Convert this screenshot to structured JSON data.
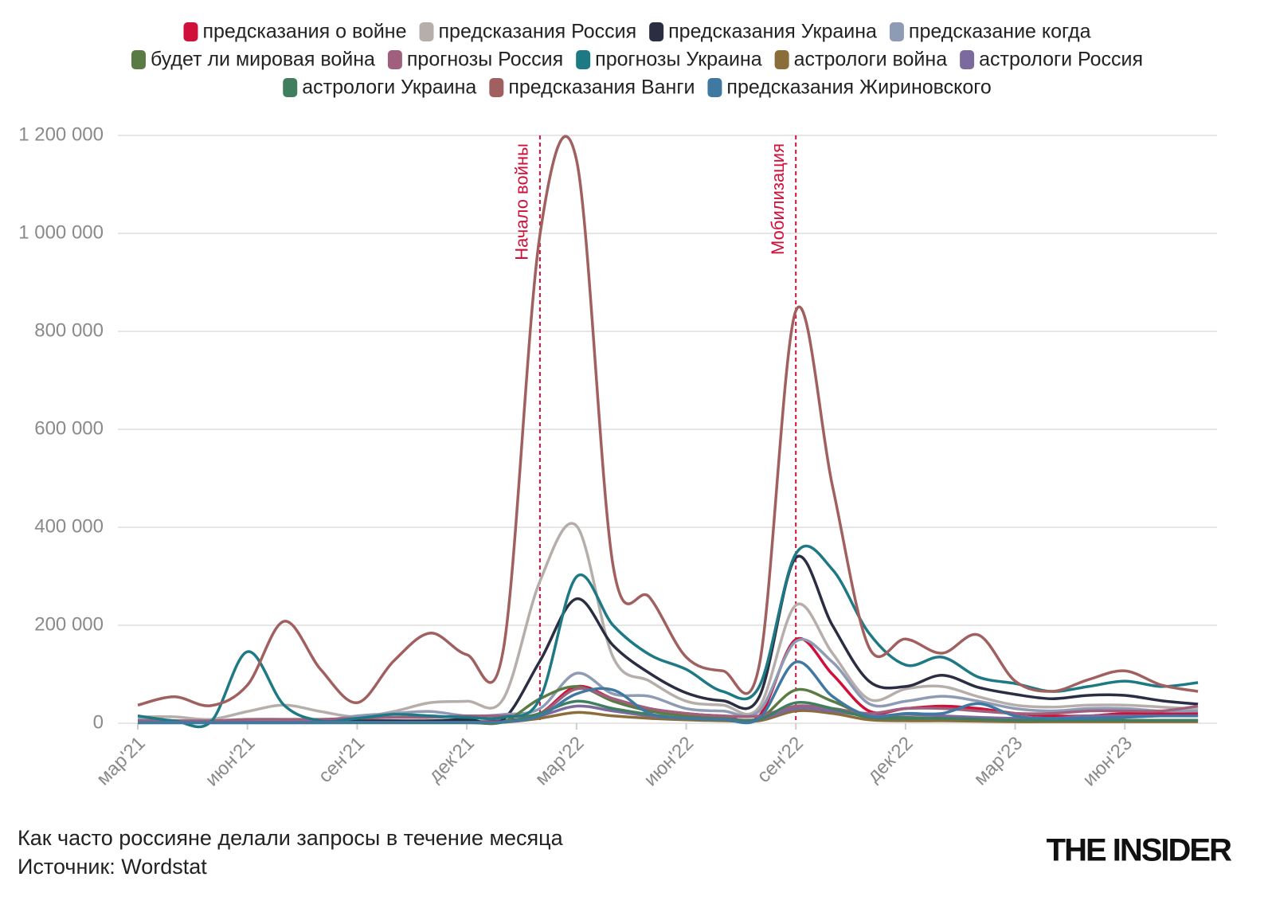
{
  "chart_data": {
    "type": "line",
    "x": [
      "2021-03",
      "2021-04",
      "2021-05",
      "2021-06",
      "2021-07",
      "2021-08",
      "2021-09",
      "2021-10",
      "2021-11",
      "2021-12",
      "2022-01",
      "2022-02",
      "2022-03",
      "2022-04",
      "2022-05",
      "2022-06",
      "2022-07",
      "2022-08",
      "2022-09",
      "2022-10",
      "2022-11",
      "2022-12",
      "2023-01",
      "2023-02",
      "2023-03",
      "2023-04",
      "2023-05",
      "2023-06",
      "2023-07",
      "2023-08"
    ],
    "xticks": [
      {
        "value": "2021-03",
        "label": "мар'21"
      },
      {
        "value": "2021-06",
        "label": "июн'21"
      },
      {
        "value": "2021-09",
        "label": "сен'21"
      },
      {
        "value": "2021-12",
        "label": "дек'21"
      },
      {
        "value": "2022-03",
        "label": "мар'22"
      },
      {
        "value": "2022-06",
        "label": "июн'22"
      },
      {
        "value": "2022-09",
        "label": "сен'22"
      },
      {
        "value": "2022-12",
        "label": "дек'22"
      },
      {
        "value": "2023-03",
        "label": "мар'23"
      },
      {
        "value": "2023-06",
        "label": "июн'23"
      }
    ],
    "ylim": [
      0,
      1200000
    ],
    "yticks": [
      0,
      {
        "value": 200000,
        "label": "200 000"
      },
      {
        "value": 400000,
        "label": "400 000"
      },
      {
        "value": 600000,
        "label": "600 000"
      },
      {
        "value": 800000,
        "label": "800 000"
      },
      {
        "value": 1000000,
        "label": "1 000 000"
      },
      {
        "value": 1200000,
        "label": "1 200 000"
      }
    ],
    "grid": true,
    "series": [
      {
        "name": "предсказания о войне",
        "color": "#d0103a",
        "values": [
          3000,
          3000,
          3000,
          3000,
          3000,
          3000,
          3000,
          3000,
          3000,
          3000,
          5000,
          20000,
          75000,
          50000,
          30000,
          20000,
          15000,
          15000,
          171000,
          100000,
          25000,
          30000,
          35000,
          30000,
          20000,
          15000,
          15000,
          20000,
          20000,
          20000
        ]
      },
      {
        "name": "предсказания Россия",
        "color": "#b5aeab",
        "values": [
          13000,
          13000,
          8000,
          24000,
          37000,
          24000,
          13000,
          24000,
          42000,
          45000,
          50000,
          290000,
          403000,
          135000,
          86000,
          45000,
          37000,
          33000,
          241000,
          143000,
          49000,
          70000,
          75000,
          54000,
          37000,
          33000,
          37000,
          37000,
          33000,
          29000
        ]
      },
      {
        "name": "предсказания Украина",
        "color": "#2b2d42",
        "values": [
          5000,
          5000,
          3000,
          3000,
          3000,
          3000,
          5000,
          5000,
          5000,
          8000,
          8000,
          127000,
          254000,
          159000,
          102000,
          62000,
          46000,
          54000,
          338000,
          200000,
          86000,
          75000,
          98000,
          73000,
          59000,
          50000,
          57000,
          57000,
          46000,
          39000
        ]
      },
      {
        "name": "предсказание когда",
        "color": "#8e9bb5",
        "values": [
          8000,
          5000,
          5000,
          5000,
          3000,
          5000,
          15000,
          20000,
          24000,
          15000,
          18000,
          30000,
          102000,
          60000,
          55000,
          30000,
          25000,
          25000,
          167000,
          125000,
          40000,
          45000,
          55000,
          45000,
          30000,
          25000,
          30000,
          30000,
          25000,
          25000
        ]
      },
      {
        "name": "будет ли мировая война",
        "color": "#5b7b45",
        "values": [
          2000,
          2000,
          2000,
          2000,
          2000,
          2000,
          2000,
          2000,
          2000,
          2000,
          3000,
          50000,
          75000,
          45000,
          25000,
          15000,
          10000,
          10000,
          68000,
          45000,
          15000,
          12000,
          10000,
          8000,
          8000,
          6000,
          6000,
          5000,
          5000,
          5000
        ]
      },
      {
        "name": "прогнозы Россия",
        "color": "#a05f7c",
        "values": [
          5000,
          5000,
          5000,
          8000,
          8000,
          8000,
          10000,
          12000,
          12000,
          15000,
          15000,
          20000,
          70000,
          50000,
          30000,
          20000,
          15000,
          15000,
          35000,
          30000,
          20000,
          30000,
          30000,
          25000,
          20000,
          20000,
          25000,
          25000,
          25000,
          35000
        ]
      },
      {
        "name": "прогнозы Украина",
        "color": "#1d7a85",
        "values": [
          15000,
          5000,
          3000,
          146000,
          37000,
          5000,
          10000,
          18000,
          15000,
          12000,
          12000,
          50000,
          299000,
          200000,
          140000,
          110000,
          65000,
          75000,
          346000,
          314000,
          184000,
          119000,
          135000,
          94000,
          81000,
          65000,
          75000,
          86000,
          75000,
          83000
        ]
      },
      {
        "name": "астрологи война",
        "color": "#8b6d3a",
        "values": [
          1000,
          1000,
          1000,
          1000,
          1000,
          1000,
          1000,
          1000,
          1000,
          1000,
          2000,
          10000,
          22000,
          15000,
          10000,
          7000,
          5000,
          5000,
          25000,
          20000,
          7000,
          5000,
          5000,
          4000,
          3000,
          3000,
          3000,
          3000,
          3000,
          3000
        ]
      },
      {
        "name": "астрологи Россия",
        "color": "#7a6a9e",
        "values": [
          2000,
          2000,
          2000,
          2000,
          2000,
          2000,
          2000,
          2000,
          2000,
          2000,
          3000,
          15000,
          35000,
          25000,
          15000,
          10000,
          8000,
          8000,
          30000,
          25000,
          15000,
          18000,
          15000,
          12000,
          10000,
          10000,
          15000,
          15000,
          15000,
          15000
        ]
      },
      {
        "name": "астрологи Украина",
        "color": "#3f7f5f",
        "values": [
          1000,
          1000,
          1000,
          1000,
          1000,
          1000,
          1000,
          1000,
          1000,
          1000,
          2000,
          20000,
          45000,
          30000,
          18000,
          10000,
          8000,
          8000,
          42000,
          30000,
          12000,
          10000,
          10000,
          8000,
          6000,
          6000,
          6000,
          6000,
          6000,
          6000
        ]
      },
      {
        "name": "предсказания Ванги",
        "color": "#a0605f",
        "values": [
          37000,
          54000,
          36000,
          78000,
          208000,
          110000,
          42000,
          127000,
          184000,
          140000,
          151000,
          997000,
          1150000,
          322000,
          257000,
          135000,
          107000,
          119000,
          842000,
          485000,
          155000,
          172000,
          143000,
          180000,
          86000,
          65000,
          89000,
          107000,
          78000,
          65000
        ]
      },
      {
        "name": "предсказания Жириновского",
        "color": "#3f78a0",
        "values": [
          1000,
          1000,
          1000,
          1000,
          1000,
          1000,
          2000,
          2000,
          2000,
          2000,
          3000,
          15000,
          60000,
          68000,
          20000,
          10000,
          8000,
          10000,
          125000,
          55000,
          15000,
          20000,
          20000,
          40000,
          15000,
          10000,
          10000,
          12000,
          15000,
          15000
        ]
      }
    ],
    "annotations": [
      {
        "x": "2022-02",
        "label": "Начало войны"
      },
      {
        "x": "2022-09",
        "label": "Мобилизация"
      }
    ],
    "annotation_color": "#d0103a",
    "caption": "Как часто россияне делали запросы в течение месяца",
    "source": "Источник: Wordstat",
    "brand": "THE INSIDER"
  }
}
